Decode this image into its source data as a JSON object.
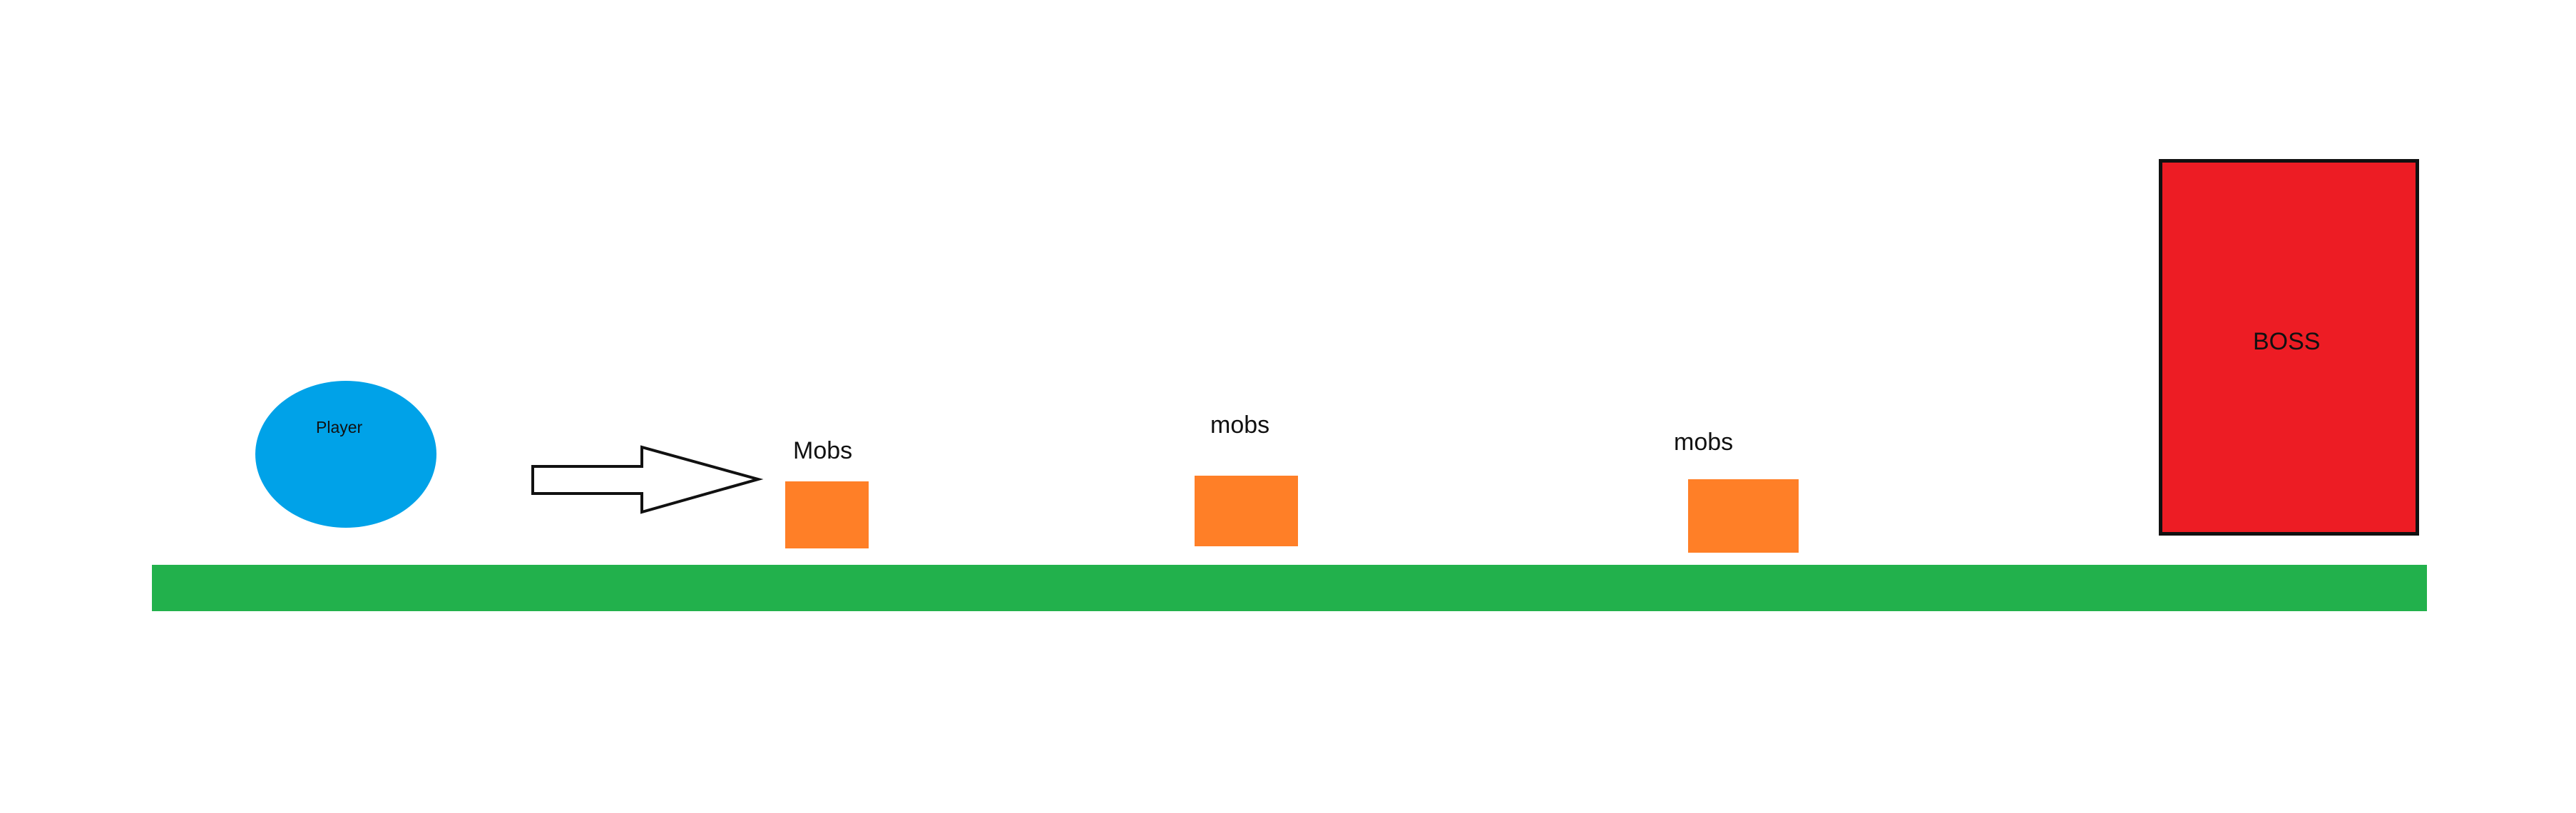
{
  "diagram": {
    "player": {
      "label": "Player",
      "color": "#00A2E8"
    },
    "ground": {
      "color": "#22B14C"
    },
    "mobs": [
      {
        "label": "Mobs",
        "color": "#FF7F27"
      },
      {
        "label": "mobs",
        "color": "#FF7F27"
      },
      {
        "label": "mobs",
        "color": "#FF7F27"
      }
    ],
    "boss": {
      "label": "BOSS",
      "color": "#ED1C24",
      "border_color": "#111111"
    },
    "arrow": {
      "icon": "right-arrow-icon",
      "stroke_color": "#111111",
      "fill_color": "#ffffff"
    }
  }
}
